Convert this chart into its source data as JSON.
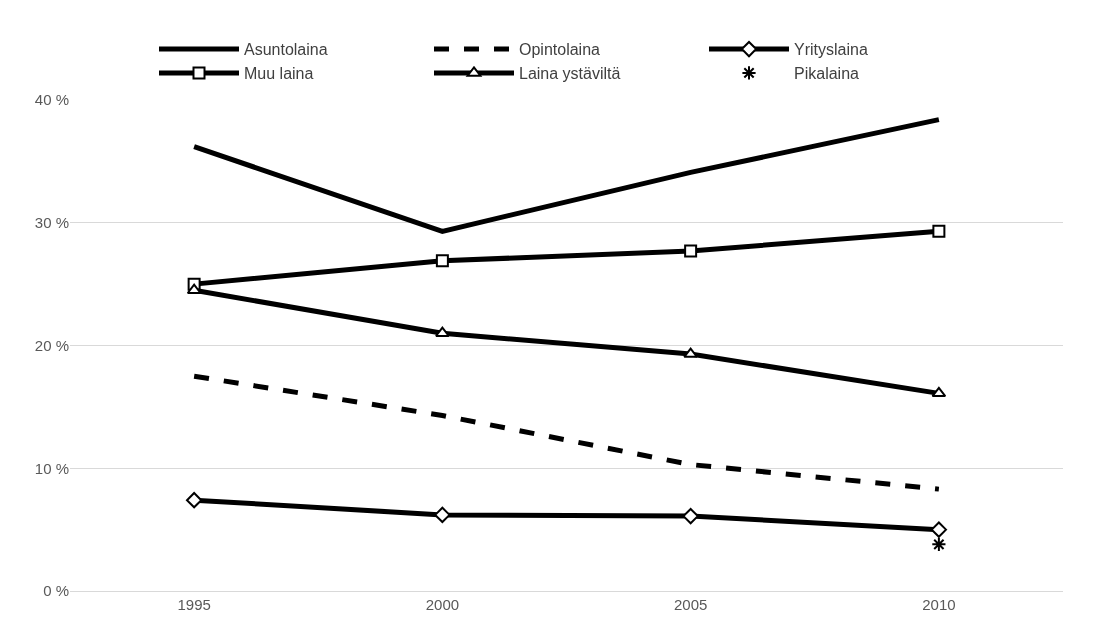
{
  "chart_data": {
    "type": "line",
    "categories": [
      "1995",
      "2000",
      "2005",
      "2010"
    ],
    "series": [
      {
        "name": "Asuntolaina",
        "color": "#000000",
        "values": [
          36.2,
          29.3,
          34.1,
          38.4
        ],
        "marker": "none",
        "line_style": "solid"
      },
      {
        "name": "Opintolaina",
        "color": "#000000",
        "values": [
          17.5,
          14.3,
          10.3,
          8.3
        ],
        "marker": "none",
        "line_style": "dashed"
      },
      {
        "name": "Yrityslaina",
        "color": "#000000",
        "values": [
          7.4,
          6.2,
          6.1,
          5.0
        ],
        "marker": "diamond",
        "line_style": "solid"
      },
      {
        "name": "Muu laina",
        "color": "#000000",
        "values": [
          25.0,
          26.9,
          27.7,
          29.3
        ],
        "marker": "square",
        "line_style": "solid"
      },
      {
        "name": "Laina ystäviltä",
        "color": "#000000",
        "values": [
          24.5,
          21.0,
          19.3,
          16.1
        ],
        "marker": "triangle",
        "line_style": "solid"
      },
      {
        "name": "Pikalaina",
        "color": "#000000",
        "type": "scatter",
        "values": [
          null,
          null,
          null,
          3.8
        ],
        "marker": "cross"
      }
    ],
    "ylim": [
      0,
      40
    ],
    "yticks": [
      {
        "value": 0,
        "label": "0 %"
      },
      {
        "value": 10,
        "label": "10 %"
      },
      {
        "value": 20,
        "label": "20 %"
      },
      {
        "value": 30,
        "label": "30 %"
      },
      {
        "value": 40,
        "label": "40 %"
      }
    ],
    "grid": "y",
    "legend": "top"
  }
}
